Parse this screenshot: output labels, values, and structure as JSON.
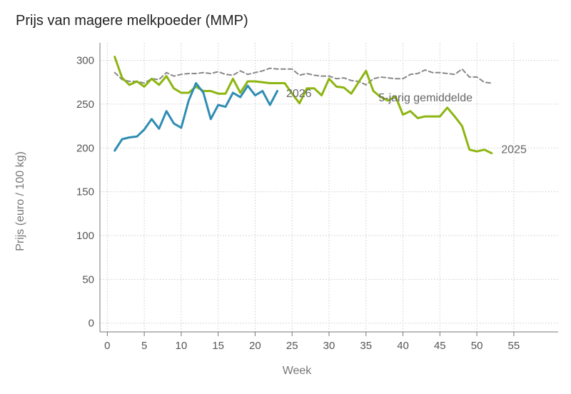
{
  "chart_data": {
    "type": "line",
    "title": "Prijs van magere melkpoeder (MMP)",
    "xlabel": "Week",
    "ylabel": "Prijs (euro / 100 kg)",
    "xlim": [
      -1,
      61
    ],
    "ylim": [
      -10,
      320
    ],
    "xticks": [
      0,
      5,
      10,
      15,
      20,
      25,
      30,
      35,
      40,
      45,
      50,
      55
    ],
    "yticks": [
      0,
      50,
      100,
      150,
      200,
      250,
      300
    ],
    "grid": true,
    "series": [
      {
        "name": "5-jarig gemiddelde",
        "color": "#888888",
        "dash": "dashed",
        "x": [
          1,
          2,
          3,
          4,
          5,
          6,
          7,
          8,
          9,
          10,
          11,
          12,
          13,
          14,
          15,
          16,
          17,
          18,
          19,
          20,
          21,
          22,
          23,
          24,
          25,
          26,
          27,
          28,
          29,
          30,
          31,
          32,
          33,
          34,
          35,
          36,
          37,
          38,
          39,
          40,
          41,
          42,
          43,
          44,
          45,
          46,
          47,
          48,
          49,
          50,
          51,
          52
        ],
        "values": [
          286,
          278,
          276,
          276,
          274,
          279,
          278,
          286,
          282,
          284,
          285,
          285,
          286,
          285,
          287,
          284,
          283,
          288,
          284,
          286,
          288,
          291,
          290,
          290,
          290,
          283,
          285,
          283,
          282,
          282,
          279,
          280,
          277,
          276,
          272,
          279,
          281,
          280,
          279,
          279,
          284,
          285,
          289,
          286,
          286,
          285,
          284,
          290,
          281,
          281,
          275,
          274
        ]
      },
      {
        "name": "2025",
        "color": "#8db511",
        "dash": "solid",
        "x": [
          1,
          2,
          3,
          4,
          5,
          6,
          7,
          8,
          9,
          10,
          11,
          12,
          13,
          14,
          15,
          16,
          17,
          18,
          19,
          20,
          21,
          22,
          23,
          24,
          25,
          26,
          27,
          28,
          29,
          30,
          31,
          32,
          33,
          34,
          35,
          36,
          37,
          38,
          39,
          40,
          41,
          42,
          43,
          44,
          45,
          46,
          47,
          48,
          49,
          50,
          51,
          52
        ],
        "values": [
          304,
          280,
          272,
          276,
          270,
          279,
          272,
          282,
          268,
          263,
          263,
          270,
          265,
          265,
          262,
          262,
          279,
          263,
          276,
          276,
          275,
          274,
          274,
          274,
          262,
          251,
          268,
          268,
          260,
          279,
          270,
          269,
          262,
          275,
          288,
          265,
          258,
          254,
          259,
          238,
          242,
          234,
          236,
          236,
          236,
          246,
          236,
          225,
          198,
          196,
          198,
          194
        ]
      },
      {
        "name": "2026",
        "color": "#2f8db3",
        "dash": "solid",
        "x": [
          1,
          2,
          3,
          4,
          5,
          6,
          7,
          8,
          9,
          10,
          11,
          12,
          13,
          14,
          15,
          16,
          17,
          18,
          19,
          20,
          21,
          22,
          23
        ],
        "values": [
          197,
          210,
          212,
          213,
          221,
          233,
          222,
          242,
          228,
          223,
          254,
          274,
          263,
          233,
          249,
          247,
          263,
          258,
          271,
          260,
          265,
          249,
          265
        ]
      }
    ],
    "labels": {
      "five_year": "5-jarig gemiddelde",
      "y2025": "2025",
      "y2026": "2026"
    }
  }
}
